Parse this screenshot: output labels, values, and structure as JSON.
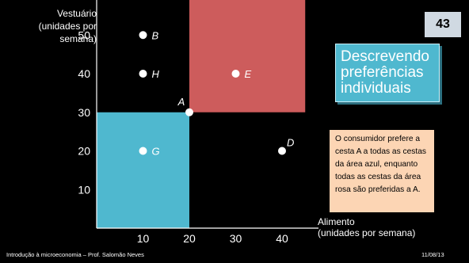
{
  "slide": {
    "number": "43",
    "title": "Descrevendo preferências individuais",
    "note": "O consumidor prefere a cesta A a todas as cestas da área azul, enquanto todas as cestas da área rosa são preferidas a A.",
    "footer_left": "Introdução à microeconomia – Prof. Salomão Neves",
    "footer_right": "11/08/13"
  },
  "colors": {
    "background": "#000000",
    "blue_area": "#4fb8cf",
    "pink_area": "#cd5c5c",
    "title_box": "#4fb8cf",
    "note_box": "#fcd5b4"
  },
  "chart_data": {
    "type": "scatter",
    "xlabel": "Alimento\n(unidades por semana)",
    "ylabel": "Vestuário\n(unidades por\nsemana)",
    "xlim": [
      0,
      45
    ],
    "ylim": [
      0,
      60
    ],
    "xticks": [
      10,
      20,
      30,
      40
    ],
    "yticks": [
      10,
      20,
      30,
      40,
      50
    ],
    "points": [
      {
        "label": "A",
        "x": 20,
        "y": 30
      },
      {
        "label": "B",
        "x": 10,
        "y": 50
      },
      {
        "label": "H",
        "x": 10,
        "y": 40
      },
      {
        "label": "E",
        "x": 30,
        "y": 40
      },
      {
        "label": "G",
        "x": 10,
        "y": 20
      },
      {
        "label": "D",
        "x": 40,
        "y": 20
      }
    ],
    "regions": [
      {
        "name": "blue",
        "x": [
          0,
          20
        ],
        "y": [
          0,
          30
        ]
      },
      {
        "name": "pink",
        "x": [
          20,
          45
        ],
        "y": [
          30,
          60
        ]
      }
    ]
  }
}
